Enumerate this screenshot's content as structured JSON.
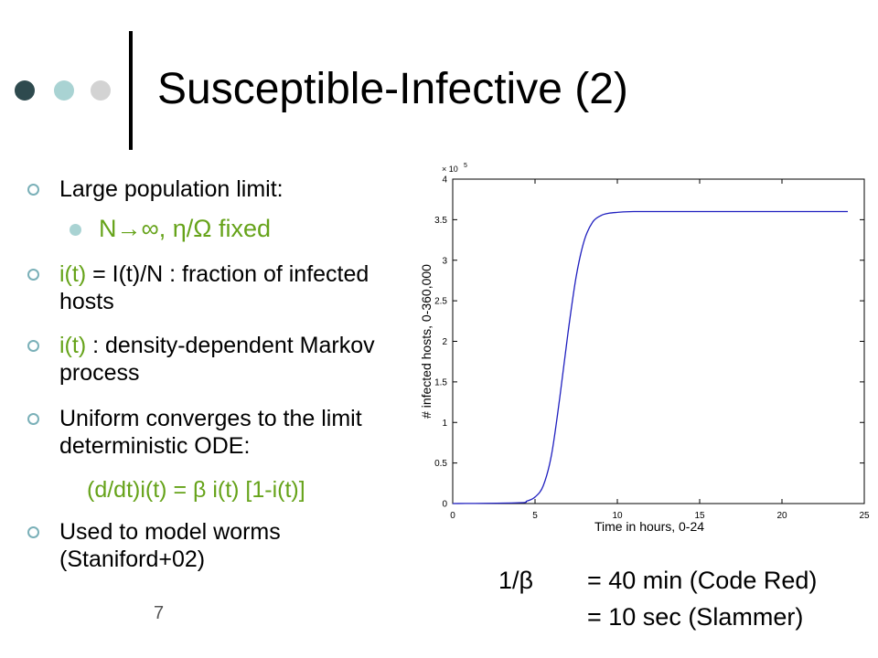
{
  "slide": {
    "title": "Susceptible-Infective (2)",
    "page_number": "7"
  },
  "bullets": [
    {
      "text": "Large population limit:"
    },
    {
      "text": "N→∞, η/Ω  fixed"
    },
    {
      "prefix": "i(t)",
      "rest": " = I(t)/N : fraction of infected hosts"
    },
    {
      "prefix": "i(t)",
      "rest": " : density-dependent Markov process"
    },
    {
      "text": "Uniform converges to the limit deterministic ODE:"
    },
    {
      "text": "(d/dt)i(t) = β i(t) [1-i(t)]"
    },
    {
      "text": "Used to model worms (Staniford+02)"
    }
  ],
  "annotation": {
    "label": "1/β",
    "line1": "= 40 min (Code Red)",
    "line2": "= 10 sec (Slammer)"
  },
  "colors": {
    "accent_green": "#66a31a",
    "bullet_ring": "#7ab0b8",
    "curve": "#1f1fbf"
  },
  "chart_data": {
    "type": "line",
    "xlabel": "Time in hours, 0-24",
    "ylabel": "# infected hosts, 0-360,000",
    "exponent_label": "× 10",
    "exponent_power": "5",
    "xlim": [
      0,
      25
    ],
    "ylim": [
      0,
      4
    ],
    "x_ticks": [
      0,
      5,
      10,
      15,
      20,
      25
    ],
    "y_ticks": [
      0,
      0.5,
      1,
      1.5,
      2,
      2.5,
      3,
      3.5,
      4
    ],
    "x_tick_labels": [
      "0",
      "5",
      "10",
      "15",
      "20",
      "25"
    ],
    "y_tick_labels": [
      "0",
      "0.5",
      "1",
      "1.5",
      "2",
      "2.5",
      "3",
      "3.5",
      "4"
    ],
    "grid": false,
    "series": [
      {
        "x": [
          0,
          4,
          4.5,
          5,
          5.5,
          6,
          6.5,
          7,
          7.5,
          8,
          8.5,
          9,
          9.5,
          10,
          11,
          14,
          18,
          24
        ],
        "values": [
          0,
          0.01,
          0.03,
          0.08,
          0.22,
          0.6,
          1.3,
          2.1,
          2.8,
          3.25,
          3.47,
          3.55,
          3.58,
          3.59,
          3.6,
          3.6,
          3.6,
          3.6
        ]
      }
    ]
  }
}
